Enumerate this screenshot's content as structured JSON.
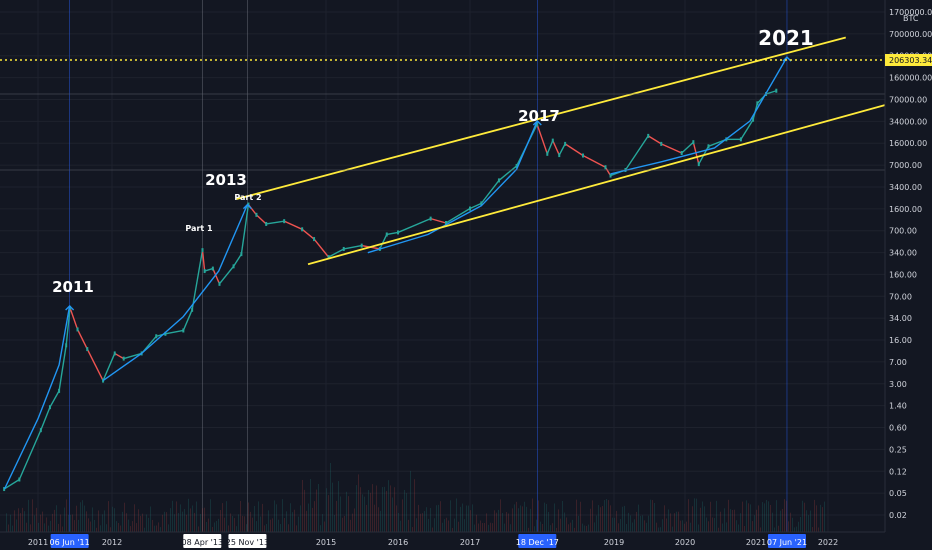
{
  "chart_data": {
    "type": "line",
    "title": "",
    "scale": "log",
    "currency_label": "BTC",
    "y_ticks": [
      "1700000.00",
      "700000.00",
      "340000.00",
      "160000.00",
      "70000.00",
      "34000.00",
      "16000.00",
      "7000.00",
      "3400.00",
      "1600.00",
      "700.00",
      "340.00",
      "160.00",
      "70.00",
      "34.00",
      "16.00",
      "7.00",
      "3.00",
      "1.40",
      "0.60",
      "0.25",
      "0.12",
      "0.05",
      "0.02"
    ],
    "x_ticks": [
      "2011",
      "2012",
      "2015",
      "2016",
      "2017",
      "2019",
      "2020",
      "2021",
      "2022"
    ],
    "x_highlight_labels": [
      "06 Jun '11",
      "08 Apr '13",
      "25 Nov '13",
      "18 Dec '17",
      "07 Jun '21"
    ],
    "price_tag": "206303.34",
    "price_level": 206303.34,
    "annotations": [
      {
        "text": "2011"
      },
      {
        "text": "2013"
      },
      {
        "text": "2017"
      },
      {
        "text": "2021"
      },
      {
        "text": "Part 1"
      },
      {
        "text": "Part 2"
      }
    ],
    "price_series": [
      {
        "date": "2010-07-18",
        "price": 0.05
      },
      {
        "date": "2010-10-01",
        "price": 0.07
      },
      {
        "date": "2011-01-15",
        "price": 0.4
      },
      {
        "date": "2011-03-01",
        "price": 0.9
      },
      {
        "date": "2011-04-15",
        "price": 1.6
      },
      {
        "date": "2011-05-20",
        "price": 8
      },
      {
        "date": "2011-06-08",
        "price": 30
      },
      {
        "date": "2011-07-15",
        "price": 14
      },
      {
        "date": "2011-09-01",
        "price": 7
      },
      {
        "date": "2011-11-18",
        "price": 2.3
      },
      {
        "date": "2012-01-15",
        "price": 6
      },
      {
        "date": "2012-03-01",
        "price": 5
      },
      {
        "date": "2012-06-01",
        "price": 6
      },
      {
        "date": "2012-08-15",
        "price": 11
      },
      {
        "date": "2012-10-01",
        "price": 12
      },
      {
        "date": "2013-01-01",
        "price": 13.5
      },
      {
        "date": "2013-02-15",
        "price": 28
      },
      {
        "date": "2013-04-09",
        "price": 230
      },
      {
        "date": "2013-04-20",
        "price": 110
      },
      {
        "date": "2013-06-01",
        "price": 120
      },
      {
        "date": "2013-07-05",
        "price": 70
      },
      {
        "date": "2013-09-15",
        "price": 130
      },
      {
        "date": "2013-10-25",
        "price": 200
      },
      {
        "date": "2013-11-30",
        "price": 1150
      },
      {
        "date": "2014-01-10",
        "price": 800
      },
      {
        "date": "2014-03-01",
        "price": 580
      },
      {
        "date": "2014-06-01",
        "price": 640
      },
      {
        "date": "2014-09-01",
        "price": 480
      },
      {
        "date": "2014-11-01",
        "price": 340
      },
      {
        "date": "2015-01-14",
        "price": 180
      },
      {
        "date": "2015-04-01",
        "price": 240
      },
      {
        "date": "2015-07-01",
        "price": 270
      },
      {
        "date": "2015-10-01",
        "price": 240
      },
      {
        "date": "2015-11-05",
        "price": 400
      },
      {
        "date": "2016-01-01",
        "price": 430
      },
      {
        "date": "2016-06-15",
        "price": 700
      },
      {
        "date": "2016-09-01",
        "price": 600
      },
      {
        "date": "2017-01-01",
        "price": 1000
      },
      {
        "date": "2017-03-01",
        "price": 1200
      },
      {
        "date": "2017-06-01",
        "price": 2700
      },
      {
        "date": "2017-09-01",
        "price": 4500
      },
      {
        "date": "2017-12-17",
        "price": 19500
      },
      {
        "date": "2018-02-06",
        "price": 6900
      },
      {
        "date": "2018-03-05",
        "price": 11000
      },
      {
        "date": "2018-04-06",
        "price": 6600
      },
      {
        "date": "2018-05-05",
        "price": 9800
      },
      {
        "date": "2018-08-01",
        "price": 6500
      },
      {
        "date": "2018-11-20",
        "price": 4300
      },
      {
        "date": "2018-12-15",
        "price": 3200
      },
      {
        "date": "2019-03-01",
        "price": 3900
      },
      {
        "date": "2019-06-26",
        "price": 13000
      },
      {
        "date": "2019-09-01",
        "price": 9800
      },
      {
        "date": "2019-12-15",
        "price": 7100
      },
      {
        "date": "2020-02-13",
        "price": 10400
      },
      {
        "date": "2020-03-12",
        "price": 4800
      },
      {
        "date": "2020-05-01",
        "price": 9000
      },
      {
        "date": "2020-08-01",
        "price": 11500
      },
      {
        "date": "2020-10-15",
        "price": 11500
      },
      {
        "date": "2020-12-17",
        "price": 23000
      },
      {
        "date": "2021-01-08",
        "price": 41000
      },
      {
        "date": "2021-02-21",
        "price": 57000
      },
      {
        "date": "2021-04-14",
        "price": 64000
      }
    ],
    "channel_lines": [
      {
        "name": "upper",
        "points": [
          {
            "date": "2013-10-01",
            "price": 1400
          },
          {
            "date": "2022-04-01",
            "price": 420000
          }
        ]
      },
      {
        "name": "lower",
        "points": [
          {
            "date": "2014-10-01",
            "price": 140
          },
          {
            "date": "2022-12-01",
            "price": 42000
          }
        ]
      }
    ],
    "arc_curves": [
      {
        "points": [
          {
            "date": "2010-07-20",
            "price": 0.05
          },
          {
            "date": "2011-01-01",
            "price": 0.6
          },
          {
            "date": "2011-04-15",
            "price": 4
          },
          {
            "date": "2011-06-06",
            "price": 32
          }
        ]
      },
      {
        "points": [
          {
            "date": "2011-11-18",
            "price": 2.3
          },
          {
            "date": "2012-06-01",
            "price": 6
          },
          {
            "date": "2013-01-01",
            "price": 22
          },
          {
            "date": "2013-07-01",
            "price": 110
          },
          {
            "date": "2013-11-25",
            "price": 1150
          }
        ]
      },
      {
        "points": [
          {
            "date": "2015-08-01",
            "price": 210
          },
          {
            "date": "2016-06-01",
            "price": 400
          },
          {
            "date": "2017-03-01",
            "price": 1100
          },
          {
            "date": "2017-09-01",
            "price": 4000
          },
          {
            "date": "2017-12-18",
            "price": 22000
          }
        ]
      },
      {
        "points": [
          {
            "date": "2018-12-15",
            "price": 3400
          },
          {
            "date": "2019-09-01",
            "price": 5200
          },
          {
            "date": "2020-06-01",
            "price": 8500
          },
          {
            "date": "2020-12-01",
            "price": 22000
          },
          {
            "date": "2021-06-07",
            "price": 210000
          }
        ]
      }
    ]
  }
}
